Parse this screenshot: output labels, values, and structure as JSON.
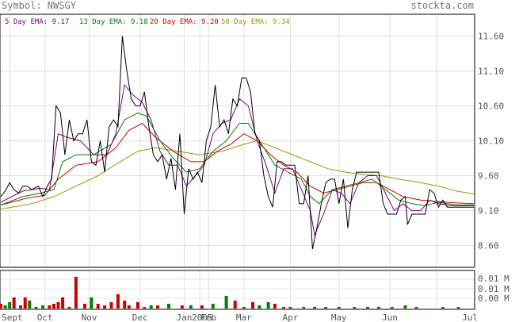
{
  "header": {
    "symbol_label": "Symbol: NWSGY",
    "site_label": "stockta.com"
  },
  "legend": [
    {
      "text": "5 Day EMA: 9.17",
      "color": "#800080"
    },
    {
      "text": "13 Day EMA: 9.18",
      "color": "#008000"
    },
    {
      "text": "20 Day EMA: 9.20",
      "color": "#cc0000"
    },
    {
      "text": "50 Day EMA: 9.34",
      "color": "#999900"
    }
  ],
  "chart_data": [
    {
      "type": "line",
      "name": "price",
      "y_ticks": [
        8.6,
        9.1,
        9.6,
        10.1,
        10.6,
        11.1,
        11.6
      ],
      "y_tick_labels": [
        "8.60",
        "9.10",
        "9.60",
        "10.10",
        "10.60",
        "11.10",
        "11.60"
      ],
      "ylim": [
        8.3,
        11.9
      ],
      "x_tick_labels": [
        "Sept",
        "Oct",
        "Nov",
        "Dec",
        "Jan",
        "2005",
        "Feb",
        "Mar",
        "Apr",
        "May",
        "Jun",
        "Jul"
      ],
      "n_points": 215,
      "x_tick_index": [
        4,
        20,
        40,
        63,
        83,
        90,
        94,
        110,
        131,
        153,
        176,
        197
      ],
      "price": [
        [
          0,
          9.3
        ],
        [
          2,
          9.38
        ],
        [
          4,
          9.5
        ],
        [
          6,
          9.4
        ],
        [
          8,
          9.35
        ],
        [
          10,
          9.45
        ],
        [
          12,
          9.45
        ],
        [
          14,
          9.4
        ],
        [
          17,
          9.45
        ],
        [
          19,
          9.3
        ],
        [
          21,
          9.45
        ],
        [
          23,
          9.55
        ],
        [
          25,
          10.6
        ],
        [
          27,
          10.5
        ],
        [
          29,
          9.9
        ],
        [
          31,
          10.4
        ],
        [
          33,
          10.1
        ],
        [
          35,
          10.2
        ],
        [
          37,
          10.2
        ],
        [
          39,
          10.4
        ],
        [
          41,
          9.8
        ],
        [
          43,
          9.75
        ],
        [
          45,
          10.1
        ],
        [
          47,
          9.65
        ],
        [
          49,
          10.3
        ],
        [
          51,
          10.4
        ],
        [
          53,
          10.3
        ],
        [
          55,
          11.6
        ],
        [
          57,
          11.1
        ],
        [
          59,
          10.7
        ],
        [
          61,
          10.6
        ],
        [
          63,
          10.6
        ],
        [
          65,
          10.8
        ],
        [
          67,
          10.3
        ],
        [
          69,
          9.9
        ],
        [
          71,
          9.8
        ],
        [
          73,
          9.9
        ],
        [
          75,
          9.55
        ],
        [
          77,
          9.85
        ],
        [
          79,
          9.4
        ],
        [
          81,
          10.2
        ],
        [
          83,
          9.05
        ],
        [
          85,
          9.7
        ],
        [
          87,
          9.55
        ],
        [
          89,
          9.65
        ],
        [
          91,
          9.5
        ],
        [
          93,
          10.1
        ],
        [
          95,
          10.3
        ],
        [
          97,
          10.9
        ],
        [
          99,
          10.3
        ],
        [
          101,
          10.4
        ],
        [
          103,
          10.2
        ],
        [
          105,
          10.7
        ],
        [
          107,
          10.6
        ],
        [
          109,
          11.0
        ],
        [
          111,
          11.0
        ],
        [
          113,
          10.8
        ],
        [
          115,
          10.2
        ],
        [
          117,
          10.1
        ],
        [
          119,
          9.6
        ],
        [
          121,
          9.3
        ],
        [
          123,
          9.15
        ],
        [
          125,
          9.8
        ],
        [
          127,
          9.8
        ],
        [
          129,
          9.75
        ],
        [
          131,
          9.75
        ],
        [
          133,
          9.75
        ],
        [
          135,
          9.2
        ],
        [
          137,
          9.2
        ],
        [
          139,
          9.6
        ],
        [
          141,
          8.55
        ],
        [
          143,
          8.85
        ],
        [
          145,
          9.2
        ],
        [
          147,
          9.5
        ],
        [
          149,
          9.55
        ],
        [
          151,
          9.55
        ],
        [
          153,
          9.2
        ],
        [
          155,
          9.55
        ],
        [
          157,
          8.85
        ],
        [
          159,
          9.4
        ],
        [
          161,
          9.65
        ],
        [
          163,
          9.65
        ],
        [
          165,
          9.65
        ],
        [
          167,
          9.65
        ],
        [
          169,
          9.65
        ],
        [
          171,
          9.65
        ],
        [
          173,
          9.2
        ],
        [
          175,
          9.05
        ],
        [
          177,
          9.05
        ],
        [
          179,
          9.05
        ],
        [
          181,
          9.25
        ],
        [
          183,
          9.3
        ],
        [
          184,
          8.9
        ],
        [
          186,
          9.05
        ],
        [
          188,
          9.05
        ],
        [
          190,
          9.05
        ],
        [
          192,
          9.05
        ],
        [
          194,
          9.4
        ],
        [
          196,
          9.35
        ],
        [
          198,
          9.15
        ],
        [
          200,
          9.25
        ],
        [
          202,
          9.15
        ],
        [
          204,
          9.15
        ],
        [
          206,
          9.15
        ],
        [
          208,
          9.15
        ],
        [
          210,
          9.15
        ],
        [
          212,
          9.15
        ],
        [
          214,
          9.15
        ]
      ],
      "ema5": [
        [
          0,
          9.22
        ],
        [
          10,
          9.38
        ],
        [
          18,
          9.42
        ],
        [
          22,
          9.4
        ],
        [
          26,
          10.2
        ],
        [
          30,
          10.15
        ],
        [
          36,
          10.1
        ],
        [
          42,
          9.9
        ],
        [
          48,
          9.9
        ],
        [
          52,
          10.2
        ],
        [
          56,
          10.9
        ],
        [
          60,
          10.75
        ],
        [
          64,
          10.65
        ],
        [
          68,
          10.4
        ],
        [
          72,
          9.95
        ],
        [
          76,
          9.75
        ],
        [
          80,
          9.75
        ],
        [
          84,
          9.45
        ],
        [
          88,
          9.6
        ],
        [
          92,
          9.75
        ],
        [
          96,
          10.2
        ],
        [
          100,
          10.35
        ],
        [
          104,
          10.4
        ],
        [
          108,
          10.7
        ],
        [
          112,
          10.6
        ],
        [
          116,
          10.1
        ],
        [
          120,
          9.75
        ],
        [
          124,
          9.35
        ],
        [
          128,
          9.7
        ],
        [
          132,
          9.7
        ],
        [
          136,
          9.4
        ],
        [
          140,
          9.1
        ],
        [
          142,
          8.75
        ],
        [
          146,
          9.05
        ],
        [
          150,
          9.4
        ],
        [
          154,
          9.35
        ],
        [
          158,
          9.2
        ],
        [
          162,
          9.5
        ],
        [
          166,
          9.6
        ],
        [
          170,
          9.6
        ],
        [
          174,
          9.35
        ],
        [
          178,
          9.1
        ],
        [
          182,
          9.2
        ],
        [
          186,
          9.1
        ],
        [
          190,
          9.1
        ],
        [
          194,
          9.25
        ],
        [
          198,
          9.2
        ],
        [
          204,
          9.17
        ],
        [
          214,
          9.17
        ]
      ],
      "ema13": [
        [
          0,
          9.18
        ],
        [
          10,
          9.3
        ],
        [
          18,
          9.35
        ],
        [
          24,
          9.4
        ],
        [
          28,
          9.8
        ],
        [
          34,
          9.9
        ],
        [
          42,
          9.9
        ],
        [
          50,
          10.05
        ],
        [
          56,
          10.4
        ],
        [
          62,
          10.5
        ],
        [
          66,
          10.45
        ],
        [
          72,
          10.1
        ],
        [
          78,
          9.85
        ],
        [
          84,
          9.65
        ],
        [
          90,
          9.7
        ],
        [
          96,
          9.95
        ],
        [
          102,
          10.1
        ],
        [
          108,
          10.35
        ],
        [
          112,
          10.35
        ],
        [
          118,
          10.05
        ],
        [
          124,
          9.75
        ],
        [
          130,
          9.65
        ],
        [
          136,
          9.55
        ],
        [
          140,
          9.3
        ],
        [
          144,
          9.2
        ],
        [
          150,
          9.4
        ],
        [
          156,
          9.45
        ],
        [
          162,
          9.5
        ],
        [
          168,
          9.55
        ],
        [
          174,
          9.4
        ],
        [
          180,
          9.25
        ],
        [
          186,
          9.2
        ],
        [
          192,
          9.17
        ],
        [
          198,
          9.22
        ],
        [
          206,
          9.18
        ],
        [
          214,
          9.18
        ]
      ],
      "ema20": [
        [
          0,
          9.18
        ],
        [
          12,
          9.28
        ],
        [
          20,
          9.32
        ],
        [
          26,
          9.55
        ],
        [
          34,
          9.75
        ],
        [
          44,
          9.8
        ],
        [
          52,
          10.0
        ],
        [
          58,
          10.25
        ],
        [
          64,
          10.35
        ],
        [
          70,
          10.15
        ],
        [
          78,
          9.95
        ],
        [
          86,
          9.8
        ],
        [
          92,
          9.8
        ],
        [
          98,
          9.95
        ],
        [
          104,
          10.05
        ],
        [
          110,
          10.2
        ],
        [
          116,
          10.1
        ],
        [
          122,
          9.9
        ],
        [
          128,
          9.75
        ],
        [
          134,
          9.65
        ],
        [
          140,
          9.45
        ],
        [
          146,
          9.35
        ],
        [
          152,
          9.4
        ],
        [
          158,
          9.45
        ],
        [
          164,
          9.5
        ],
        [
          170,
          9.5
        ],
        [
          176,
          9.4
        ],
        [
          182,
          9.3
        ],
        [
          190,
          9.25
        ],
        [
          198,
          9.23
        ],
        [
          206,
          9.21
        ],
        [
          214,
          9.2
        ]
      ],
      "ema50": [
        [
          0,
          9.12
        ],
        [
          14,
          9.2
        ],
        [
          24,
          9.3
        ],
        [
          34,
          9.45
        ],
        [
          44,
          9.6
        ],
        [
          54,
          9.8
        ],
        [
          62,
          9.95
        ],
        [
          70,
          10.0
        ],
        [
          80,
          9.95
        ],
        [
          90,
          9.9
        ],
        [
          100,
          9.95
        ],
        [
          110,
          10.05
        ],
        [
          116,
          10.1
        ],
        [
          124,
          10.0
        ],
        [
          132,
          9.9
        ],
        [
          140,
          9.8
        ],
        [
          148,
          9.7
        ],
        [
          156,
          9.65
        ],
        [
          164,
          9.62
        ],
        [
          172,
          9.6
        ],
        [
          180,
          9.55
        ],
        [
          190,
          9.5
        ],
        [
          198,
          9.45
        ],
        [
          206,
          9.38
        ],
        [
          214,
          9.34
        ]
      ]
    },
    {
      "type": "bar",
      "name": "volume",
      "y_tick_labels": [
        "0.01 M",
        "0.01 M",
        "0.00 M"
      ],
      "values": [
        [
          0,
          0.15
        ],
        [
          2,
          0.1
        ],
        [
          4,
          0.2
        ],
        [
          6,
          0.35
        ],
        [
          9,
          0.1
        ],
        [
          11,
          0.35
        ],
        [
          13,
          0.25
        ],
        [
          16,
          0.05
        ],
        [
          19,
          0.1
        ],
        [
          22,
          0.1
        ],
        [
          24,
          0.15
        ],
        [
          26,
          0.2
        ],
        [
          28,
          0.35
        ],
        [
          31,
          0.05
        ],
        [
          34,
          1.0
        ],
        [
          38,
          0.15
        ],
        [
          41,
          0.35
        ],
        [
          44,
          0.15
        ],
        [
          47,
          0.1
        ],
        [
          50,
          0.2
        ],
        [
          53,
          0.45
        ],
        [
          56,
          0.25
        ],
        [
          58,
          0.1
        ],
        [
          62,
          0.2
        ],
        [
          65,
          0.05
        ],
        [
          68,
          0.1
        ],
        [
          71,
          0.1
        ],
        [
          76,
          0.15
        ],
        [
          82,
          0.1
        ],
        [
          86,
          0.1
        ],
        [
          91,
          0.1
        ],
        [
          96,
          0.15
        ],
        [
          102,
          0.4
        ],
        [
          106,
          0.25
        ],
        [
          110,
          0.05
        ],
        [
          114,
          0.2
        ],
        [
          117,
          0.1
        ],
        [
          121,
          0.2
        ],
        [
          124,
          0.15
        ],
        [
          128,
          0.05
        ],
        [
          131,
          0.05
        ],
        [
          137,
          0.05
        ],
        [
          142,
          0.05
        ],
        [
          147,
          0.05
        ],
        [
          153,
          0.05
        ],
        [
          160,
          0.05
        ],
        [
          166,
          0.05
        ],
        [
          171,
          0.05
        ],
        [
          177,
          0.05
        ],
        [
          183,
          0.1
        ],
        [
          188,
          0.05
        ],
        [
          200,
          0.05
        ],
        [
          207,
          0.05
        ]
      ],
      "colors": [
        "#cc0000",
        "#008000",
        "#008000",
        "#cc0000",
        "#cc0000",
        "#cc0000",
        "#008000",
        "#cc0000",
        "#008000",
        "#cc0000",
        "#cc0000",
        "#cc0000",
        "#cc0000",
        "#cc0000",
        "#cc0000",
        "#cc0000",
        "#008000",
        "#cc0000",
        "#cc0000",
        "#cc0000",
        "#cc0000",
        "#cc0000",
        "#cc0000",
        "#cc0000",
        "#cc0000",
        "#008000",
        "#cc0000",
        "#008000",
        "#cc0000",
        "#008000",
        "#cc0000",
        "#008000",
        "#008000",
        "#cc0000",
        "#cc0000",
        "#cc0000",
        "#008000",
        "#008000",
        "#cc0000",
        "#cc0000",
        "#008000",
        "#008000",
        "#cc0000",
        "#008000",
        "#cc0000",
        "#008000",
        "#cc0000",
        "#cc0000",
        "#008000",
        "#008000",
        "#cc0000",
        "#008000",
        "#008000"
      ]
    }
  ]
}
